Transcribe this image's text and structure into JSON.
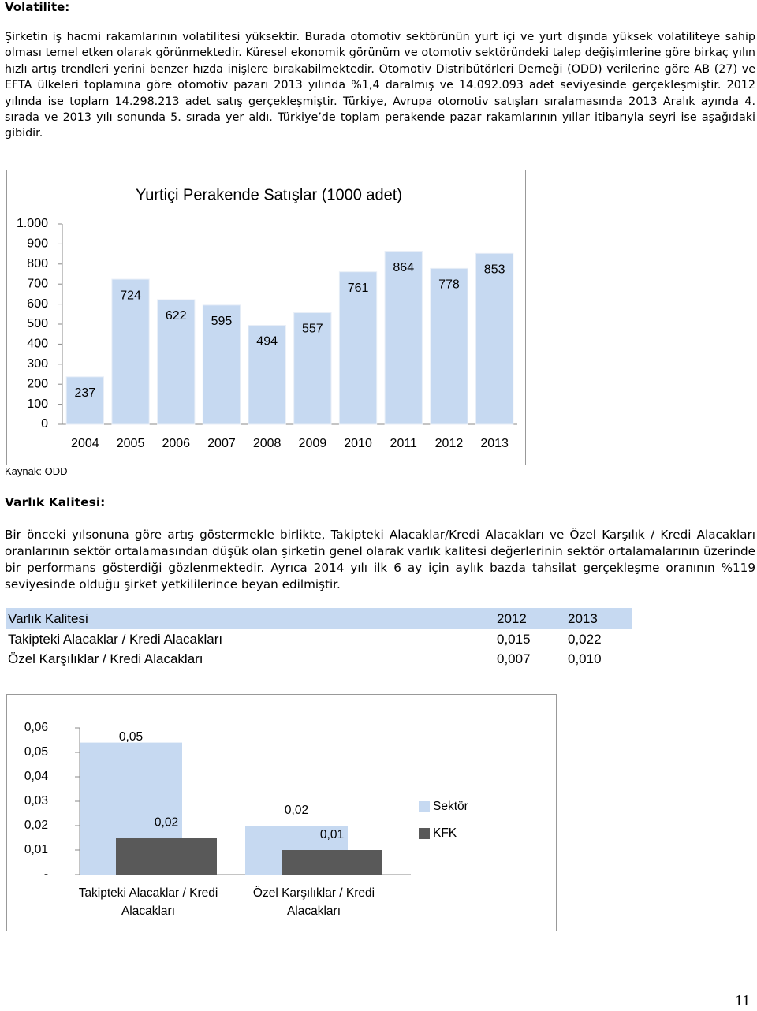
{
  "heading_volatility": "Volatilite:",
  "paragraph_volatility": "Şirketin iş hacmi rakamlarının volatilitesi yüksektir. Burada otomotiv sektörünün yurt içi ve yurt dışında yüksek volatiliteye sahip olması temel etken olarak görünmektedir. Küresel ekonomik görünüm ve otomotiv sektöründeki talep değişimlerine göre birkaç yılın hızlı artış trendleri yerini benzer hızda inişlere bırakabilmektedir. Otomotiv Distribütörleri Derneği (ODD) verilerine göre AB (27) ve EFTA ülkeleri toplamına göre otomotiv pazarı 2013 yılında %1,4 daralmış ve 14.092.093 adet seviyesinde gerçekleşmiştir. 2012 yılında ise toplam 14.298.213 adet satış gerçekleşmiştir. Türkiye, Avrupa otomotiv satışları sıralamasında 2013 Aralık ayında 4. sırada ve 2013 yılı sonunda 5. sırada yer aldı. Türkiye’de toplam perakende pazar rakamlarının yıllar itibarıyla seyri ise aşağıdaki gibidir.",
  "chart_data": [
    {
      "type": "bar",
      "title": "Yurtiçi Perakende Satışlar (1000 adet)",
      "categories": [
        "2004",
        "2005",
        "2006",
        "2007",
        "2008",
        "2009",
        "2010",
        "2011",
        "2012",
        "2013"
      ],
      "values": [
        237,
        724,
        622,
        595,
        494,
        557,
        761,
        864,
        778,
        853
      ],
      "color": "#c6d9f1",
      "data_labels": true,
      "ylim": [
        0,
        1000
      ],
      "yticks": [
        0,
        100,
        200,
        300,
        400,
        500,
        600,
        700,
        800,
        900,
        {
          "value": 1000,
          "label": "1.000"
        }
      ],
      "grid": false
    },
    {
      "type": "bar",
      "categories": [
        "Takipteki Alacaklar / Kredi Alacakları",
        "Özel Karşılıklar / Kredi Alacakları"
      ],
      "series": [
        {
          "name": "Sektör",
          "color": "#c6d9f1",
          "values": [
            0.054,
            0.02
          ],
          "value_labels": [
            "0,05",
            "0,02"
          ]
        },
        {
          "name": "KFK",
          "color": "#595959",
          "values": [
            0.015,
            0.01
          ],
          "value_labels": [
            "0,02",
            "0,01"
          ]
        }
      ],
      "data_labels": true,
      "ylim": [
        0,
        0.06
      ],
      "yticks": [
        {
          "value": 0,
          "label": "-"
        },
        {
          "value": 0.01,
          "label": "0,01"
        },
        {
          "value": 0.02,
          "label": "0,02"
        },
        {
          "value": 0.03,
          "label": "0,03"
        },
        {
          "value": 0.04,
          "label": "0,04"
        },
        {
          "value": 0.05,
          "label": "0,05"
        },
        {
          "value": 0.06,
          "label": "0,06"
        }
      ],
      "legend": "right",
      "grid": false
    }
  ],
  "source_note": "Kaynak: ODD",
  "heading_asset_quality": "Varlık Kalitesi:",
  "paragraph_asset_quality": "Bir önceki yılsonuna göre artış göstermekle birlikte, Takipteki Alacaklar/Kredi Alacakları ve Özel Karşılık / Kredi Alacakları oranlarının sektör ortalamasından düşük olan şirketin genel olarak varlık kalitesi değerlerinin sektör ortalamalarının üzerinde bir performans gösterdiği gözlenmektedir.  Ayrıca 2014 yılı ilk 6 ay için aylık bazda tahsilat gerçekleşme oranının %119 seviyesinde olduğu şirket yetkililerince beyan edilmiştir.",
  "table": {
    "header": [
      "Varlık Kalitesi",
      "2012",
      "2013"
    ],
    "rows": [
      [
        "Takipteki Alacaklar / Kredi Alacakları",
        "0,015",
        "0,022"
      ],
      [
        "Özel Karşılıklar / Kredi Alacakları",
        "0,007",
        "0,010"
      ]
    ]
  },
  "page_number": "11"
}
